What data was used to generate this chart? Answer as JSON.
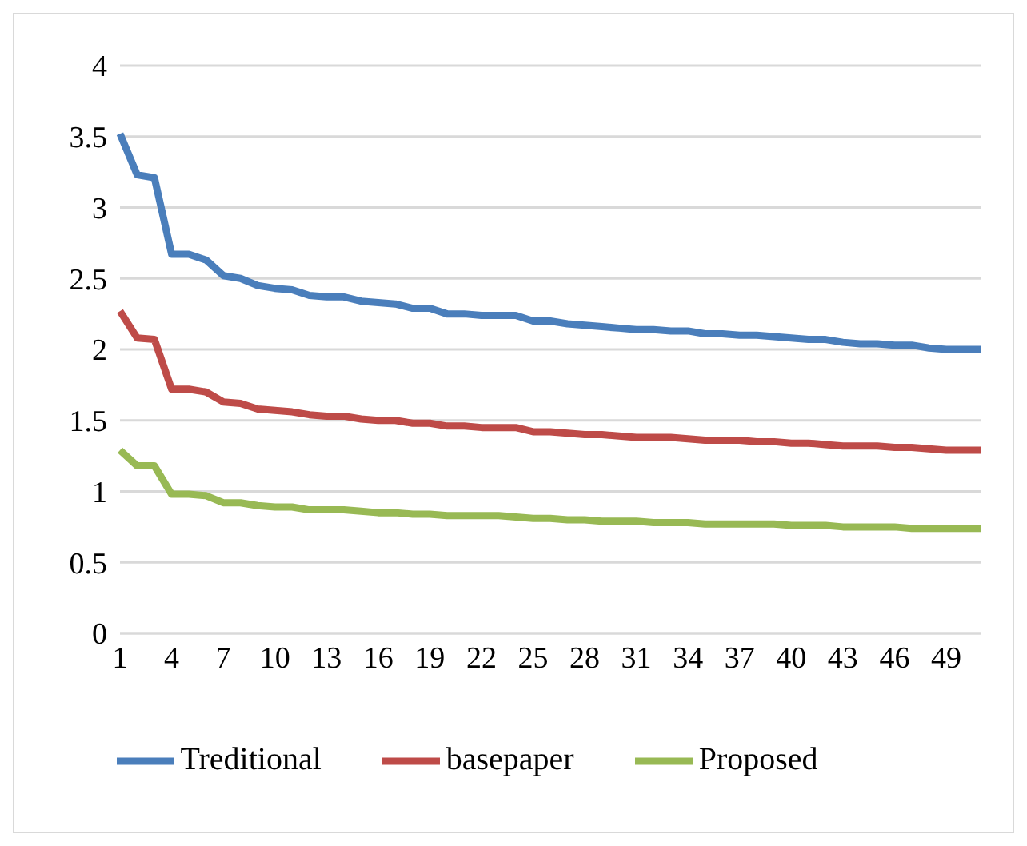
{
  "chart_data": {
    "type": "line",
    "categories": [
      "1",
      null,
      null,
      "4",
      null,
      null,
      "7",
      null,
      null,
      "10",
      null,
      null,
      "13",
      null,
      null,
      "16",
      null,
      null,
      "19",
      null,
      null,
      "22",
      null,
      null,
      "25",
      null,
      null,
      "28",
      null,
      null,
      "31",
      null,
      null,
      "34",
      null,
      null,
      "37",
      null,
      null,
      "40",
      null,
      null,
      "43",
      null,
      null,
      "46",
      null,
      null,
      "49",
      null,
      null
    ],
    "series": [
      {
        "name": "Treditional",
        "color": "#4a7ebb",
        "values": [
          3.52,
          3.23,
          3.21,
          2.67,
          2.67,
          2.63,
          2.52,
          2.5,
          2.45,
          2.43,
          2.42,
          2.38,
          2.37,
          2.37,
          2.34,
          2.33,
          2.32,
          2.29,
          2.29,
          2.25,
          2.25,
          2.24,
          2.24,
          2.24,
          2.2,
          2.2,
          2.18,
          2.17,
          2.16,
          2.15,
          2.14,
          2.14,
          2.13,
          2.13,
          2.11,
          2.11,
          2.1,
          2.1,
          2.09,
          2.08,
          2.07,
          2.07,
          2.05,
          2.04,
          2.04,
          2.03,
          2.03,
          2.01,
          2.0,
          2.0,
          2.0
        ]
      },
      {
        "name": "basepaper",
        "color": "#be4b48",
        "values": [
          2.27,
          2.08,
          2.07,
          1.72,
          1.72,
          1.7,
          1.63,
          1.62,
          1.58,
          1.57,
          1.56,
          1.54,
          1.53,
          1.53,
          1.51,
          1.5,
          1.5,
          1.48,
          1.48,
          1.46,
          1.46,
          1.45,
          1.45,
          1.45,
          1.42,
          1.42,
          1.41,
          1.4,
          1.4,
          1.39,
          1.38,
          1.38,
          1.38,
          1.37,
          1.36,
          1.36,
          1.36,
          1.35,
          1.35,
          1.34,
          1.34,
          1.33,
          1.32,
          1.32,
          1.32,
          1.31,
          1.31,
          1.3,
          1.29,
          1.29,
          1.29
        ]
      },
      {
        "name": "Proposed",
        "color": "#98b954",
        "values": [
          1.29,
          1.18,
          1.18,
          0.98,
          0.98,
          0.97,
          0.92,
          0.92,
          0.9,
          0.89,
          0.89,
          0.87,
          0.87,
          0.87,
          0.86,
          0.85,
          0.85,
          0.84,
          0.84,
          0.83,
          0.83,
          0.83,
          0.83,
          0.82,
          0.81,
          0.81,
          0.8,
          0.8,
          0.79,
          0.79,
          0.79,
          0.78,
          0.78,
          0.78,
          0.77,
          0.77,
          0.77,
          0.77,
          0.77,
          0.76,
          0.76,
          0.76,
          0.75,
          0.75,
          0.75,
          0.75,
          0.74,
          0.74,
          0.74,
          0.74,
          0.74
        ]
      }
    ],
    "ylim": [
      0,
      4
    ],
    "yticks": [
      0,
      0.5,
      1,
      1.5,
      2,
      2.5,
      3,
      3.5,
      4
    ],
    "grid": "y",
    "legend": "bottom",
    "marker": "none",
    "line_style": "solid"
  }
}
